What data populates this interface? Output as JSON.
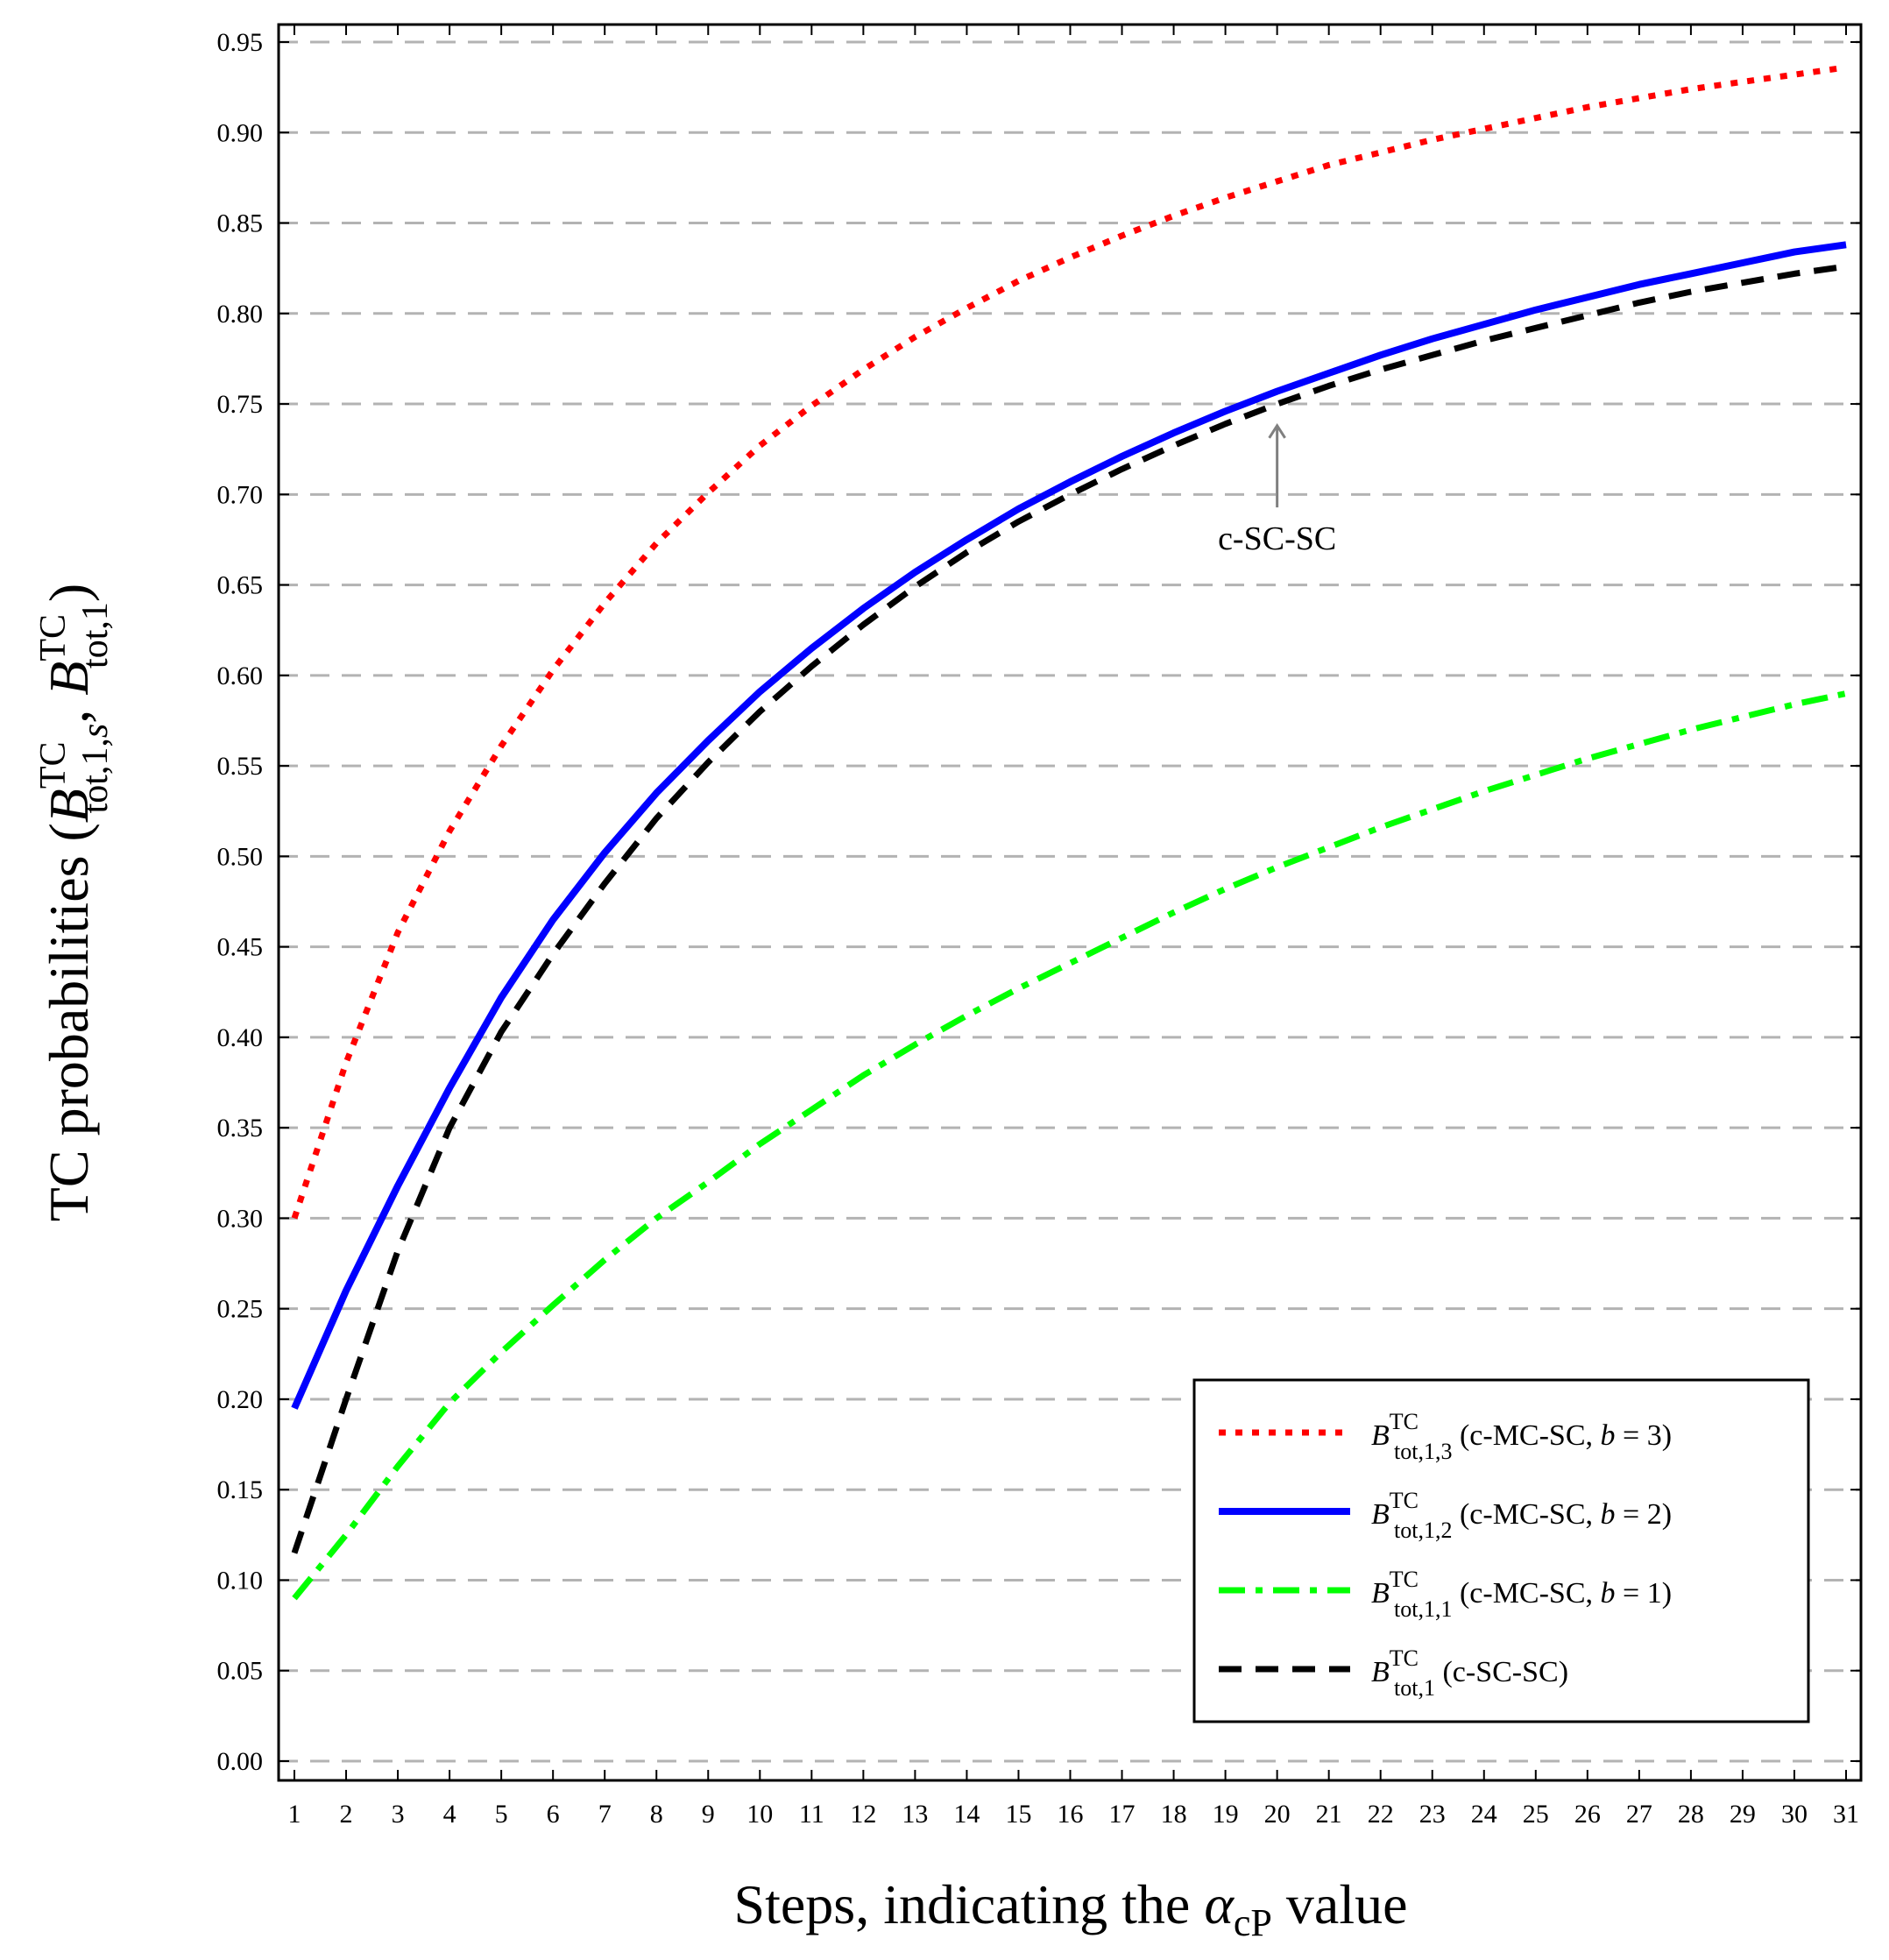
{
  "chart_data": {
    "type": "line",
    "title": "",
    "xlabel": "Steps, indicating the αcP value",
    "xlabel_parts": {
      "prefix": "Steps, indicating the ",
      "symbol": "α",
      "subscript": "cP",
      "suffix": " value"
    },
    "ylabel": "TC probabilities (B^TC_tot,1,s, B^TC_tot,1)",
    "ylabel_parts": {
      "prefix": "TC probabilities (",
      "sym1": "B",
      "sup1": "TC",
      "sub1": "tot,1,",
      "sub1_var": "s",
      "sep": ", ",
      "sym2": "B",
      "sup2": "TC",
      "sub2": "tot,1",
      "suffix": ")"
    },
    "xlim": [
      1,
      31
    ],
    "ylim": [
      0.0,
      0.95
    ],
    "x": [
      1,
      2,
      3,
      4,
      5,
      6,
      7,
      8,
      9,
      10,
      11,
      12,
      13,
      14,
      15,
      16,
      17,
      18,
      19,
      20,
      21,
      22,
      23,
      24,
      25,
      26,
      27,
      28,
      29,
      30,
      31
    ],
    "x_tick_labels": [
      "1",
      "2",
      "3",
      "4",
      "5",
      "6",
      "7",
      "8",
      "9",
      "10",
      "11",
      "12",
      "13",
      "14",
      "15",
      "16",
      "17",
      "18",
      "19",
      "20",
      "21",
      "22",
      "23",
      "24",
      "25",
      "26",
      "27",
      "28",
      "29",
      "30",
      "31"
    ],
    "y_ticks": [
      0.0,
      0.05,
      0.1,
      0.15,
      0.2,
      0.25,
      0.3,
      0.35,
      0.4,
      0.45,
      0.5,
      0.55,
      0.6,
      0.65,
      0.7,
      0.75,
      0.8,
      0.85,
      0.9,
      0.95
    ],
    "y_tick_labels": [
      "0.00",
      "0.05",
      "0.10",
      "0.15",
      "0.20",
      "0.25",
      "0.30",
      "0.35",
      "0.40",
      "0.45",
      "0.50",
      "0.55",
      "0.60",
      "0.65",
      "0.70",
      "0.75",
      "0.80",
      "0.85",
      "0.90",
      "0.95"
    ],
    "grid": "horizontal dashed",
    "legend_position": "bottom-right",
    "series": [
      {
        "name": "B^TC_tot,1,3 (c-MC-SC, b = 3)",
        "legend": {
          "sym": "B",
          "sup": "TC",
          "sub": "tot,1,3",
          "text_pre": " (c-MC-SC, ",
          "var": "b",
          "text_post": " = 3)"
        },
        "color": "#ff0000",
        "style": "dotted",
        "values": [
          0.3,
          0.386,
          0.458,
          0.514,
          0.561,
          0.603,
          0.64,
          0.673,
          0.701,
          0.727,
          0.749,
          0.769,
          0.787,
          0.803,
          0.818,
          0.831,
          0.843,
          0.854,
          0.864,
          0.873,
          0.882,
          0.889,
          0.896,
          0.902,
          0.908,
          0.914,
          0.919,
          0.924,
          0.928,
          0.932,
          0.936
        ]
      },
      {
        "name": "B^TC_tot,1,2 (c-MC-SC, b = 2)",
        "legend": {
          "sym": "B",
          "sup": "TC",
          "sub": "tot,1,2",
          "text_pre": " (c-MC-SC, ",
          "var": "b",
          "text_post": " = 2)"
        },
        "color": "#0000ff",
        "style": "solid",
        "values": [
          0.195,
          0.26,
          0.318,
          0.372,
          0.422,
          0.465,
          0.502,
          0.535,
          0.564,
          0.591,
          0.615,
          0.637,
          0.657,
          0.675,
          0.692,
          0.707,
          0.721,
          0.734,
          0.746,
          0.757,
          0.767,
          0.777,
          0.786,
          0.794,
          0.802,
          0.809,
          0.816,
          0.822,
          0.828,
          0.834,
          0.838
        ]
      },
      {
        "name": "B^TC_tot,1,1 (c-MC-SC, b = 1)",
        "legend": {
          "sym": "B",
          "sup": "TC",
          "sub": "tot,1,1",
          "text_pre": " (c-MC-SC, ",
          "var": "b",
          "text_post": " = 1)"
        },
        "color": "#00ff00",
        "style": "dashdot",
        "values": [
          0.09,
          0.125,
          0.163,
          0.198,
          0.226,
          0.252,
          0.277,
          0.3,
          0.32,
          0.341,
          0.36,
          0.379,
          0.396,
          0.412,
          0.427,
          0.441,
          0.455,
          0.469,
          0.482,
          0.494,
          0.505,
          0.516,
          0.526,
          0.536,
          0.545,
          0.554,
          0.562,
          0.57,
          0.577,
          0.584,
          0.59
        ]
      },
      {
        "name": "B^TC_tot,1 (c-SC-SC)",
        "legend": {
          "sym": "B",
          "sup": "TC",
          "sub": "tot,1",
          "text_pre": " (c-SC-SC)",
          "var": "",
          "text_post": ""
        },
        "color": "#000000",
        "style": "dashed",
        "values": [
          0.115,
          0.2,
          0.282,
          0.35,
          0.403,
          0.446,
          0.485,
          0.521,
          0.552,
          0.58,
          0.605,
          0.628,
          0.649,
          0.668,
          0.685,
          0.7,
          0.714,
          0.727,
          0.739,
          0.75,
          0.76,
          0.769,
          0.777,
          0.785,
          0.792,
          0.799,
          0.806,
          0.812,
          0.817,
          0.822,
          0.826
        ]
      }
    ],
    "annotations": [
      {
        "text": "c-SC-SC",
        "x": 20,
        "y": 0.688,
        "arrow_to_x": 20,
        "arrow_to_y": 0.738
      }
    ]
  }
}
